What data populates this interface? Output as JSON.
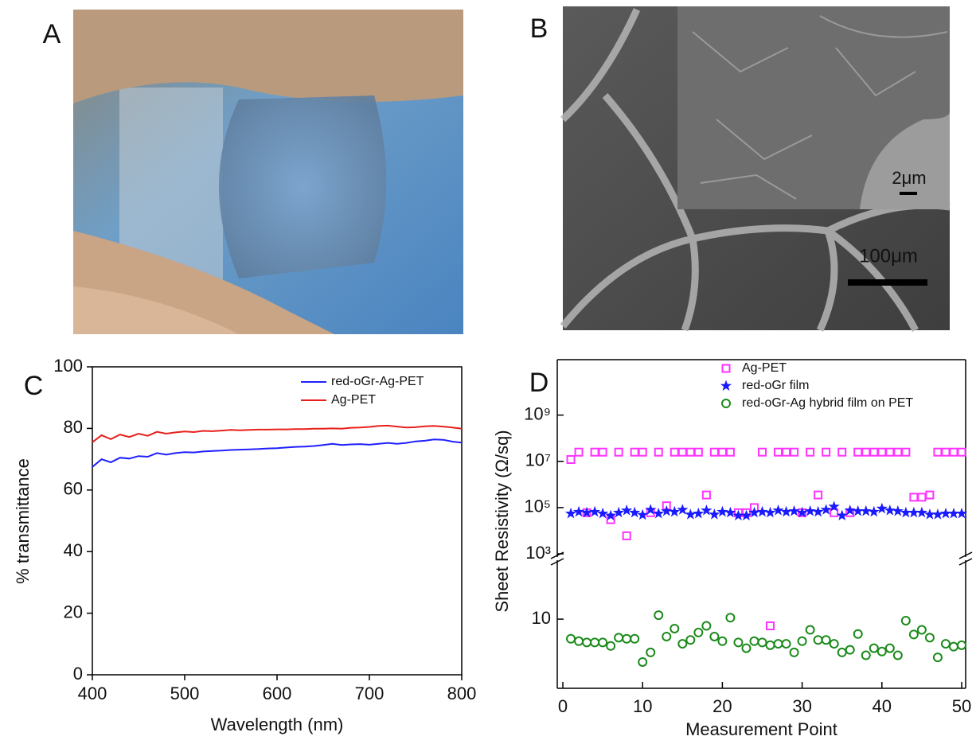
{
  "panels": [
    {
      "label": "A"
    },
    {
      "label": "B",
      "inset_scale": "2μm",
      "scale": "100μm"
    }
  ],
  "chart_data": [
    {
      "type": "line",
      "panel_label": "C",
      "x_label": "Wavelength (nm)",
      "y_label": "% transmittance",
      "x": [
        400,
        410,
        420,
        430,
        440,
        450,
        460,
        470,
        480,
        490,
        500,
        510,
        520,
        530,
        540,
        550,
        560,
        570,
        580,
        590,
        600,
        610,
        620,
        630,
        640,
        650,
        660,
        670,
        680,
        690,
        700,
        710,
        720,
        730,
        740,
        750,
        760,
        770,
        780,
        790,
        800
      ],
      "series": [
        {
          "name": "red-oGr-Ag-PET",
          "color": "#1f1fff",
          "values": [
            67.5,
            70.0,
            69.0,
            70.5,
            70.2,
            71.0,
            70.8,
            72.0,
            71.5,
            72.0,
            72.3,
            72.2,
            72.5,
            72.7,
            72.8,
            73.0,
            73.1,
            73.2,
            73.3,
            73.5,
            73.6,
            73.8,
            74.0,
            74.1,
            74.3,
            74.6,
            75.0,
            74.6,
            74.8,
            74.9,
            74.7,
            75.0,
            75.3,
            75.0,
            75.3,
            75.8,
            76.0,
            76.4,
            76.3,
            75.7,
            75.4
          ]
        },
        {
          "name": "Ag-PET",
          "color": "#e8201c",
          "values": [
            75.5,
            77.8,
            76.5,
            78.0,
            77.2,
            78.3,
            77.6,
            78.9,
            78.3,
            78.7,
            79.0,
            78.8,
            79.2,
            79.1,
            79.3,
            79.5,
            79.4,
            79.5,
            79.6,
            79.6,
            79.7,
            79.7,
            79.8,
            79.8,
            79.9,
            79.9,
            80.0,
            79.9,
            80.2,
            80.3,
            80.5,
            80.8,
            80.9,
            80.6,
            80.3,
            80.4,
            80.7,
            80.8,
            80.6,
            80.3,
            79.9
          ]
        }
      ],
      "xlim": [
        400,
        800
      ],
      "xticks": [
        400,
        500,
        600,
        700,
        800
      ],
      "ylim": [
        0,
        100
      ],
      "yticks": [
        0,
        20,
        40,
        60,
        80,
        100
      ],
      "legend": "upper right"
    },
    {
      "type": "scatter",
      "panel_label": "D",
      "x_label": "Measurement Point",
      "y_label": "Sheet Resistivity (Ω/sq)",
      "x": [
        1,
        2,
        3,
        4,
        5,
        6,
        7,
        8,
        9,
        10,
        11,
        12,
        13,
        14,
        15,
        16,
        17,
        18,
        19,
        20,
        21,
        22,
        23,
        24,
        25,
        26,
        27,
        28,
        29,
        30,
        31,
        32,
        33,
        34,
        35,
        36,
        37,
        38,
        39,
        40,
        41,
        42,
        43,
        44,
        45,
        46,
        47,
        48,
        49,
        50
      ],
      "series": [
        {
          "name": "Ag-PET",
          "color": "#ff33ff",
          "marker": "square",
          "values": [
            12000000,
            25000000,
            60000,
            25000000,
            25000000,
            30000,
            25000000,
            6000,
            25000000,
            25000000,
            60000,
            25000000,
            120000,
            25000000,
            25000000,
            25000000,
            25000000,
            350000,
            25000000,
            25000000,
            25000000,
            60000,
            60000,
            100000,
            25000000,
            8,
            25000000,
            25000000,
            25000000,
            60000,
            25000000,
            350000,
            25000000,
            60000,
            25000000,
            60000,
            25000000,
            25000000,
            25000000,
            25000000,
            25000000,
            25000000,
            25000000,
            280000,
            280000,
            350000,
            25000000,
            25000000,
            25000000,
            25000000
          ]
        },
        {
          "name": "red-oGr film",
          "color": "#1a1aff",
          "marker": "star",
          "values": [
            55000,
            65000,
            60000,
            65000,
            55000,
            45000,
            60000,
            75000,
            60000,
            48000,
            80000,
            55000,
            70000,
            65000,
            80000,
            50000,
            55000,
            75000,
            50000,
            65000,
            60000,
            45000,
            45000,
            60000,
            65000,
            60000,
            75000,
            65000,
            70000,
            60000,
            70000,
            65000,
            80000,
            110000,
            45000,
            75000,
            70000,
            70000,
            65000,
            90000,
            75000,
            70000,
            60000,
            60000,
            60000,
            50000,
            50000,
            55000,
            55000,
            55000
          ]
        },
        {
          "name": "red-oGr-Ag hybrid film on PET",
          "color": "#1a8a1a",
          "marker": "circle",
          "values": [
            5.2,
            4.8,
            4.6,
            4.6,
            4.6,
            4.1,
            5.4,
            5.2,
            5.2,
            2.4,
            3.3,
            11.4,
            5.6,
            7.3,
            4.4,
            5.0,
            6.4,
            8.0,
            5.6,
            4.8,
            10.5,
            4.6,
            3.8,
            4.8,
            4.6,
            4.2,
            4.4,
            4.4,
            3.3,
            4.8,
            7.0,
            5.0,
            5.0,
            4.4,
            3.3,
            3.6,
            6.1,
            3.0,
            3.8,
            3.4,
            3.8,
            3.0,
            9.5,
            6.0,
            7.0,
            5.4,
            2.8,
            4.4,
            4.0,
            4.2
          ]
        }
      ],
      "xlim": [
        -0.7,
        50.5
      ],
      "xticks": [
        0,
        10,
        20,
        30,
        40,
        50
      ],
      "ylim": [
        1000,
        250000000000
      ],
      "log_y": true,
      "yticks": [
        {
          "value": 1000,
          "label": "10³"
        },
        {
          "value": 100000,
          "label": "10⁵"
        },
        {
          "value": 10000000,
          "label": "10⁷"
        },
        {
          "value": 1000000000,
          "label": "10⁹"
        }
      ],
      "y2lim": [
        1,
        64
      ],
      "log_y2": true,
      "y2ticks": [
        10
      ],
      "legend": "upper center"
    }
  ]
}
